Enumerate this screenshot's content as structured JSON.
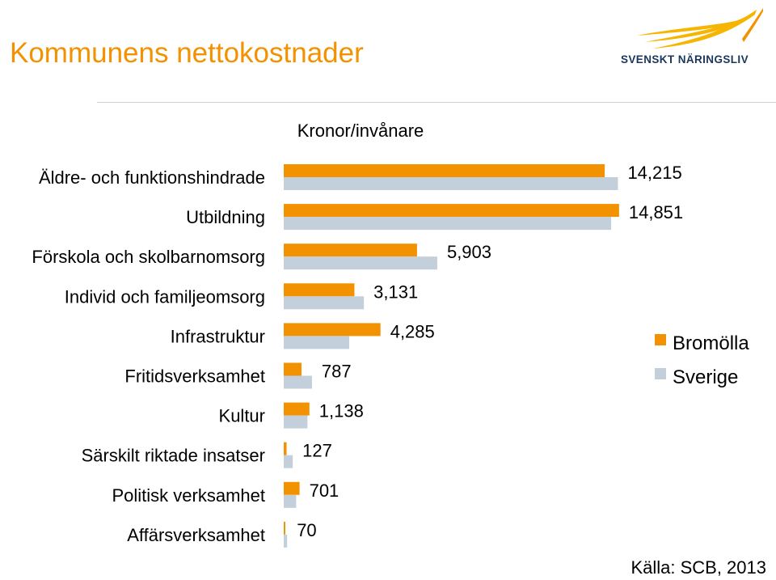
{
  "header": {
    "title": "Kommunens nettokostnader",
    "logo_text": "SVENSKT NÄRINGSLIV"
  },
  "footer": {
    "source": "Källa: SCB, 2013"
  },
  "colors": {
    "title": "#f39200",
    "bromolla": "#f39200",
    "sverige": "#c3cfda",
    "logo_navy": "#1b365d",
    "logo_gold": "#f6b500"
  },
  "chart_data": {
    "type": "bar",
    "orientation": "horizontal",
    "unit_label": "Kronor/invånare",
    "categories": [
      "Äldre- och funktionshindrade",
      "Utbildning",
      "Förskola och skolbarnomsorg",
      "Individ och familjeomsorg",
      "Infrastruktur",
      "Fritidsverksamhet",
      "Kultur",
      "Särskilt riktade insatser",
      "Politisk verksamhet",
      "Affärsverksamhet"
    ],
    "series": [
      {
        "name": "Bromölla",
        "values": [
          14215,
          14851,
          5903,
          3131,
          4285,
          787,
          1138,
          127,
          701,
          70
        ],
        "labels": [
          "14,215",
          "14,851",
          "5,903",
          "3,131",
          "4,285",
          "787",
          "1,138",
          "127",
          "701",
          "70"
        ]
      },
      {
        "name": "Sverige",
        "values": [
          14800,
          14500,
          6800,
          3550,
          2900,
          1250,
          1050,
          400,
          550,
          150
        ]
      }
    ],
    "xlim": [
      0,
      15500
    ],
    "legend_position": "right",
    "grid": false
  }
}
